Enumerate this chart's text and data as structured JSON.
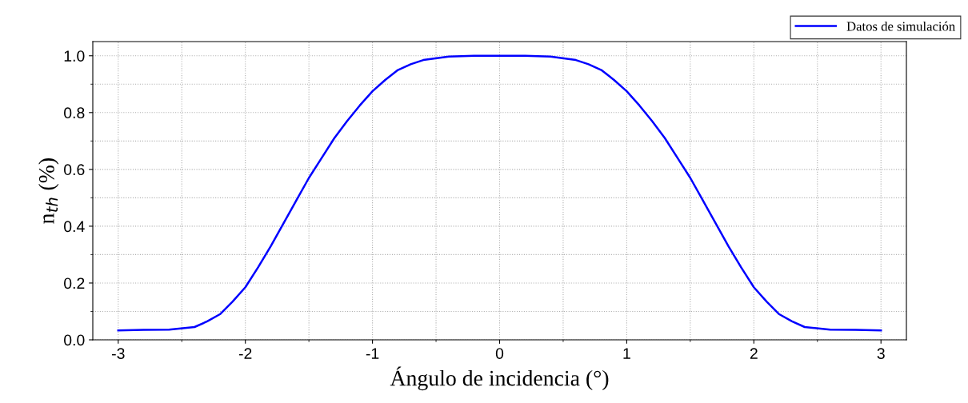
{
  "chart_data": {
    "type": "line",
    "xlabel": "Ángulo de incidencia (°)",
    "ylabel": "n$_{th}$ (%)",
    "xlim": [
      -3.2,
      3.2
    ],
    "ylim": [
      0,
      1.05
    ],
    "xticks": [
      -3,
      -2,
      -1,
      0,
      1,
      2,
      3
    ],
    "yticks": [
      {
        "value": 0,
        "label": "0.0"
      },
      0.2,
      0.4,
      0.6,
      0.8,
      {
        "value": 1,
        "label": "1.0"
      }
    ],
    "grid": true,
    "legend": "top right",
    "marker": "none",
    "line_style": "solid",
    "series": [
      {
        "name": "Datos de simulación",
        "color": "#0000ff",
        "x": [
          -3,
          -2.8,
          -2.6,
          -2.4,
          -2.3,
          -2.2,
          -2.1,
          -2,
          -1.9,
          -1.8,
          -1.7,
          -1.6,
          -1.5,
          -1.4,
          -1.3,
          -1.2,
          -1.1,
          -1,
          -0.9,
          -0.8,
          -0.7,
          -0.6,
          -0.4,
          -0.2,
          0,
          0.2,
          0.4,
          0.6,
          0.7,
          0.8,
          0.9,
          1,
          1.1,
          1.2,
          1.3,
          1.4,
          1.5,
          1.6,
          1.7,
          1.8,
          1.9,
          2,
          2.1,
          2.2,
          2.3,
          2.4,
          2.6,
          2.8,
          3
        ],
        "values": [
          0.033,
          0.035,
          0.036,
          0.045,
          0.065,
          0.09,
          0.135,
          0.185,
          0.255,
          0.33,
          0.41,
          0.49,
          0.57,
          0.64,
          0.71,
          0.77,
          0.825,
          0.875,
          0.915,
          0.95,
          0.97,
          0.985,
          0.997,
          1.0,
          1.0,
          1.0,
          0.997,
          0.985,
          0.97,
          0.95,
          0.915,
          0.875,
          0.825,
          0.77,
          0.71,
          0.64,
          0.57,
          0.49,
          0.41,
          0.33,
          0.255,
          0.185,
          0.135,
          0.09,
          0.065,
          0.045,
          0.036,
          0.035,
          0.033
        ]
      }
    ]
  }
}
